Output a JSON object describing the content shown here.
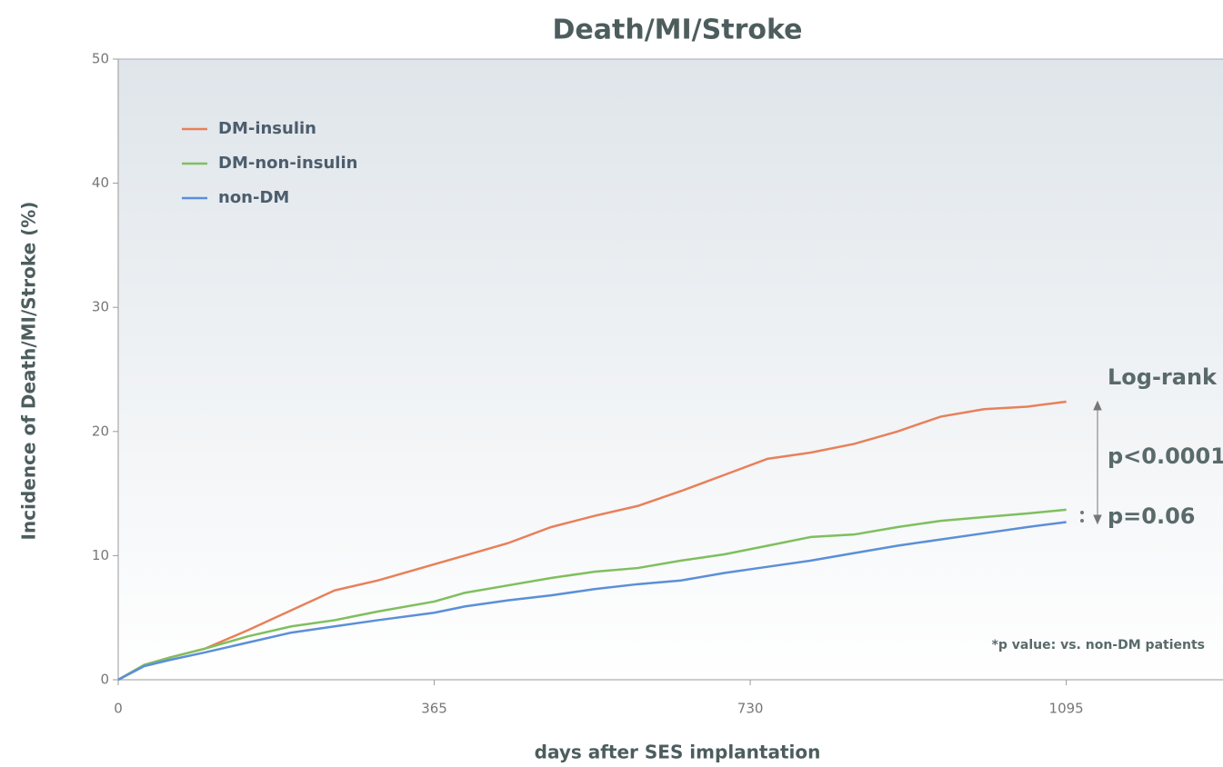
{
  "chart_data": {
    "type": "line",
    "title": "Death/MI/Stroke",
    "x_label": "days after SES implantation",
    "y_label": "Incidence of Death/MI/Stroke (%)",
    "x": [
      0,
      30,
      60,
      100,
      150,
      200,
      250,
      300,
      365,
      400,
      450,
      500,
      550,
      600,
      650,
      700,
      750,
      800,
      850,
      900,
      950,
      1000,
      1050,
      1095
    ],
    "series": [
      {
        "name": "DM-insulin",
        "color": "#e8805a",
        "values": [
          0,
          1.2,
          1.8,
          2.5,
          4,
          5.6,
          7.2,
          8,
          9.3,
          10,
          11,
          12.3,
          13.2,
          14,
          15.2,
          16.5,
          17.8,
          18.3,
          19,
          20,
          21.2,
          21.8,
          22,
          22.4
        ]
      },
      {
        "name": "DM-non-insulin",
        "color": "#7fbf5e",
        "values": [
          0,
          1.2,
          1.8,
          2.5,
          3.5,
          4.3,
          4.8,
          5.5,
          6.3,
          7,
          7.6,
          8.2,
          8.7,
          9,
          9.6,
          10.1,
          10.8,
          11.5,
          11.7,
          12.3,
          12.8,
          13.1,
          13.4,
          13.7
        ]
      },
      {
        "name": "non-DM",
        "color": "#5b8fd8",
        "values": [
          0,
          1.1,
          1.6,
          2.2,
          3,
          3.8,
          4.3,
          4.8,
          5.4,
          5.9,
          6.4,
          6.8,
          7.3,
          7.7,
          8,
          8.6,
          9.1,
          9.6,
          10.2,
          10.8,
          11.3,
          11.8,
          12.3,
          12.7
        ]
      }
    ],
    "xlim": [
      0,
      1276
    ],
    "xticks": [
      0,
      365,
      730,
      1095
    ],
    "ylim": [
      0,
      50
    ],
    "yticks": [
      0,
      10,
      20,
      30,
      40,
      50
    ],
    "grid": false,
    "legend": "upper left",
    "annotations": [
      "Log-rank",
      "p<0.0001",
      "p=0.06",
      "*p value: vs. non-DM patients"
    ]
  }
}
